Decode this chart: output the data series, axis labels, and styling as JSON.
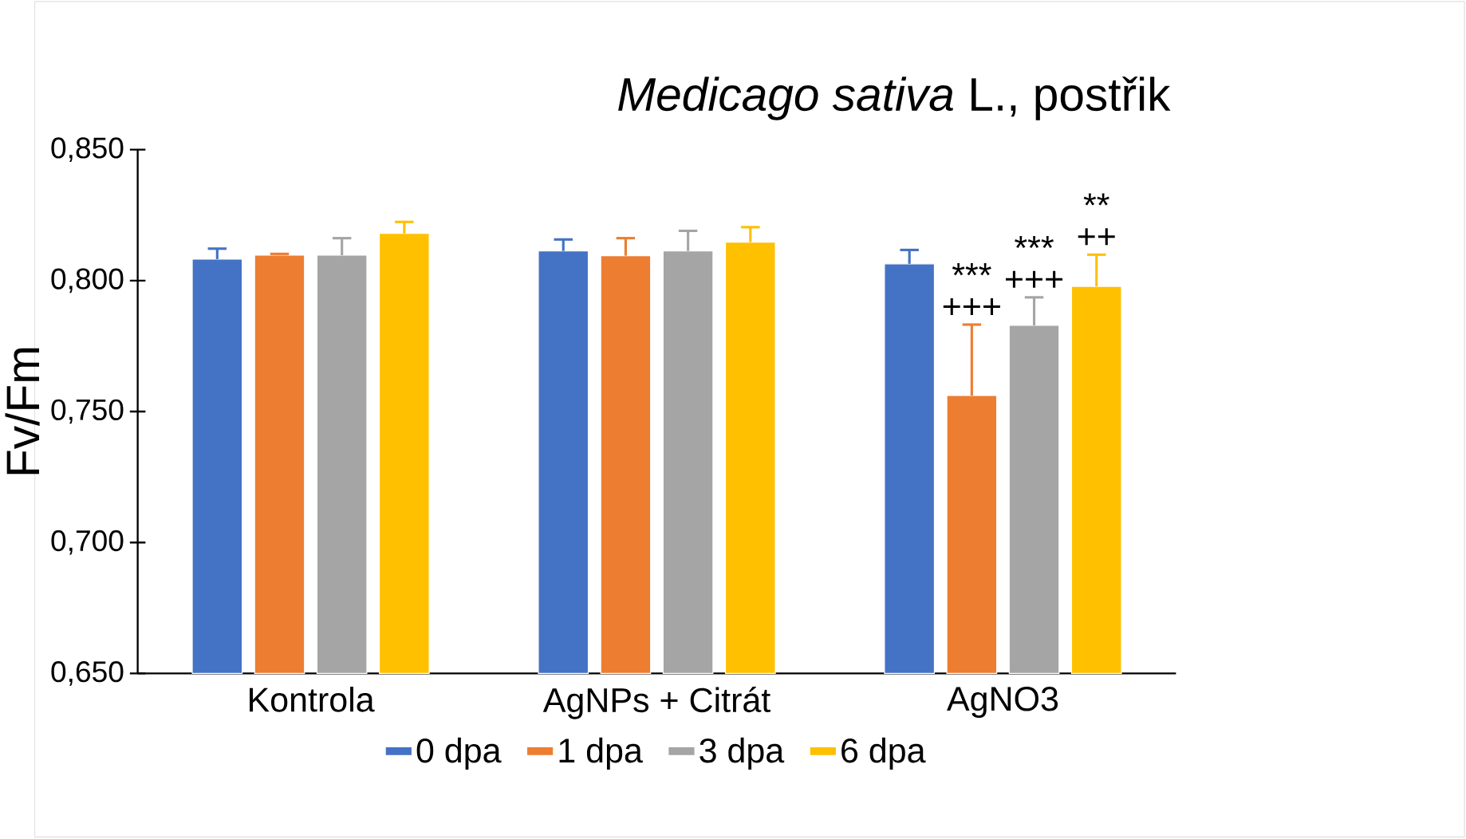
{
  "chart_data": {
    "type": "bar",
    "title": "*Medicago sativa* L., postřik",
    "ylabel": "Fv/Fm",
    "categories": [
      "Kontrola",
      "AgNPs + Citrát",
      "AgNO3"
    ],
    "series": [
      {
        "name": "0 dpa",
        "color": "#4472c4",
        "values": [
          0.8082,
          0.8113,
          0.8064
        ],
        "errors": [
          0.004,
          0.0044,
          0.0053
        ]
      },
      {
        "name": "1 dpa",
        "color": "#ed7d31",
        "values": [
          0.8097,
          0.8095,
          0.7561
        ],
        "errors": [
          0.0005,
          0.0067,
          0.0271
        ]
      },
      {
        "name": "3 dpa",
        "color": "#a5a5a5",
        "values": [
          0.8097,
          0.8113,
          0.7829
        ],
        "errors": [
          0.0065,
          0.0077,
          0.0107
        ]
      },
      {
        "name": "6 dpa",
        "color": "#ffc000",
        "values": [
          0.818,
          0.8147,
          0.7978
        ],
        "errors": [
          0.0044,
          0.0057,
          0.0121
        ]
      }
    ],
    "ylim": [
      0.65,
      0.85
    ],
    "yticks": [
      {
        "value": 0.65,
        "label": "0,650"
      },
      {
        "value": 0.7,
        "label": "0,700"
      },
      {
        "value": 0.75,
        "label": "0,750"
      },
      {
        "value": 0.8,
        "label": "0,800"
      },
      {
        "value": 0.85,
        "label": "0,850"
      }
    ],
    "annotations": [
      "***",
      "+++",
      "***",
      "+++",
      "**",
      "++"
    ],
    "legend": "bottom",
    "grid": false
  }
}
